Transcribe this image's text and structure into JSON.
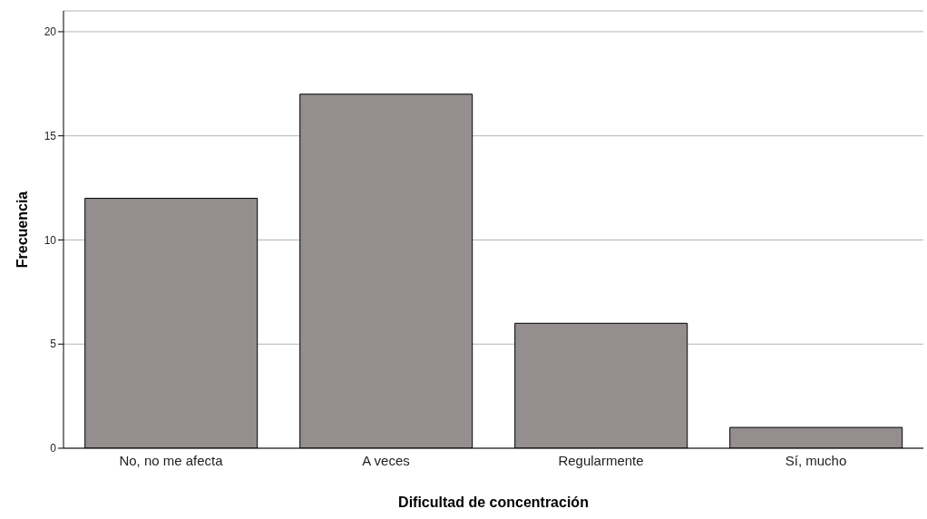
{
  "chart_data": {
    "type": "bar",
    "xlabel": "Dificultad de concentración",
    "ylabel": "Frecuencia",
    "categories": [
      "No, no me afecta",
      "A veces",
      "Regularmente",
      "Sí, mucho"
    ],
    "values": [
      12,
      17,
      6,
      1
    ],
    "color": "#948f8e",
    "ylim": [
      0,
      21
    ],
    "yticks": [
      0,
      5,
      10,
      15,
      20
    ],
    "grid": "y",
    "legend": false
  }
}
